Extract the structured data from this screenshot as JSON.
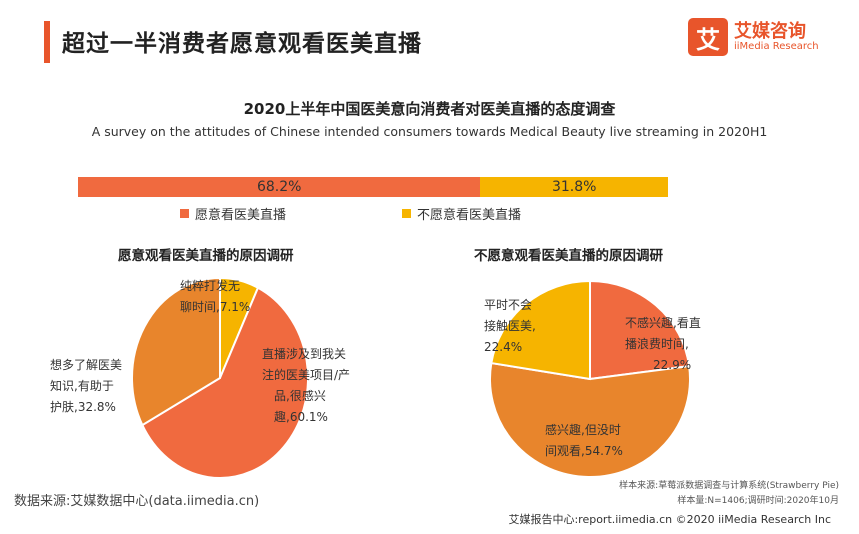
{
  "header": {
    "title": "超过一半消费者愿意观看医美直播",
    "logo_mark": "艾",
    "logo_cn": "艾媒咨询",
    "logo_en": "iiMedia Research"
  },
  "colors": {
    "orange": "#f06a3f",
    "yellow": "#f6b400",
    "dark_orange": "#e8852c",
    "accent": "#e8552b"
  },
  "chart_data": [
    {
      "type": "bar",
      "title": "2020上半年中国医美意向消费者对医美直播的态度调查",
      "subtitle": "A survey on the attitudes of Chinese intended consumers towards Medical Beauty live streaming in 2020H1",
      "categories": [
        "愿意看医美直播",
        "不愿意看医美直播"
      ],
      "values": [
        68.2,
        31.8
      ],
      "value_labels": [
        "68.2%",
        "31.8%"
      ]
    },
    {
      "type": "pie",
      "title": "愿意观看医美直播的原因调研",
      "slices": [
        {
          "value": 7.1,
          "label_lines": [
            "纯粹打发无",
            "聊时间,7.1%"
          ]
        },
        {
          "value": 60.1,
          "label_lines": [
            "直播涉及到我关",
            "注的医美项目/产",
            "品,很感兴",
            "趣,60.1%"
          ]
        },
        {
          "value": 32.8,
          "label_lines": [
            "想多了解医美",
            "知识,有助于",
            "护肤,32.8%"
          ]
        }
      ]
    },
    {
      "type": "pie",
      "title": "不愿意观看医美直播的原因调研",
      "slices": [
        {
          "value": 22.9,
          "label_lines": [
            "不感兴趣,看直",
            "播浪费时间,",
            "22.9%"
          ]
        },
        {
          "value": 54.7,
          "label_lines": [
            "感兴趣,但没时",
            "间观看,54.7%"
          ]
        },
        {
          "value": 22.4,
          "label_lines": [
            "平时不会",
            "接触医美,",
            "22.4%"
          ]
        }
      ]
    }
  ],
  "footer": {
    "source": "数据来源:艾媒数据中心(data.iimedia.cn)",
    "sample_source": "样本来源:草莓派数据调查与计算系统(Strawberry Pie)",
    "sample_info": "样本量:N=1406;调研时间:2020年10月",
    "report": "艾媒报告中心:report.iimedia.cn ©2020 iiMedia Research Inc"
  }
}
